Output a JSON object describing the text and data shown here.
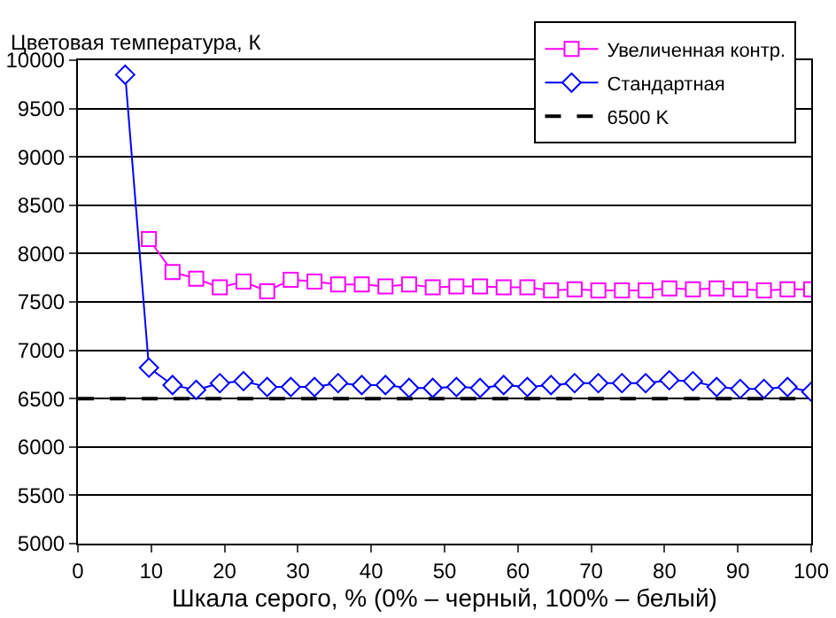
{
  "chart_data": {
    "type": "line",
    "ylabel": "Цветовая температура, К",
    "xlabel": "Шкала серого, % (0% – черный, 100% – белый)",
    "xlim": [
      0,
      100
    ],
    "xticks": [
      0,
      10,
      20,
      30,
      40,
      50,
      60,
      70,
      80,
      90,
      100
    ],
    "ylim": [
      5000,
      10000
    ],
    "yticks": [
      5000,
      5500,
      6000,
      6500,
      7000,
      7500,
      8000,
      8500,
      9000,
      9500,
      10000
    ],
    "grid": "y",
    "legend": "top right",
    "line_style": "solid",
    "series": [
      {
        "name": "Увеличенная контр.",
        "color": "#ff00ff",
        "marker": "square",
        "x": [
          9.68,
          12.9,
          16.13,
          19.35,
          22.58,
          25.81,
          29.03,
          32.26,
          35.48,
          38.71,
          41.94,
          45.16,
          48.39,
          51.61,
          54.84,
          58.06,
          61.29,
          64.52,
          67.74,
          70.97,
          74.19,
          77.42,
          80.65,
          83.87,
          87.1,
          90.32,
          93.55,
          96.77,
          100
        ],
        "values": [
          8150,
          7810,
          7740,
          7650,
          7710,
          7610,
          7730,
          7710,
          7680,
          7680,
          7660,
          7680,
          7650,
          7660,
          7660,
          7650,
          7650,
          7620,
          7630,
          7620,
          7620,
          7620,
          7640,
          7630,
          7640,
          7630,
          7620,
          7630,
          7630
        ]
      },
      {
        "name": "Стандартная",
        "color": "#0000ff",
        "marker": "diamond",
        "x": [
          6.45,
          9.68,
          12.9,
          16.13,
          19.35,
          22.58,
          25.81,
          29.03,
          32.26,
          35.48,
          38.71,
          41.94,
          45.16,
          48.39,
          51.61,
          54.84,
          58.06,
          61.29,
          64.52,
          67.74,
          70.97,
          74.19,
          77.42,
          80.65,
          83.87,
          87.1,
          90.32,
          93.55,
          96.77,
          100
        ],
        "values": [
          9850,
          6820,
          6640,
          6590,
          6660,
          6680,
          6620,
          6620,
          6620,
          6660,
          6640,
          6640,
          6610,
          6610,
          6620,
          6610,
          6640,
          6620,
          6640,
          6660,
          6660,
          6660,
          6660,
          6690,
          6680,
          6620,
          6600,
          6600,
          6620,
          6570
        ]
      }
    ],
    "ref_lines": [
      {
        "axis": "y",
        "value": 6500,
        "label": "6500 K",
        "color": "#000000",
        "line_style": "dashed"
      }
    ]
  }
}
